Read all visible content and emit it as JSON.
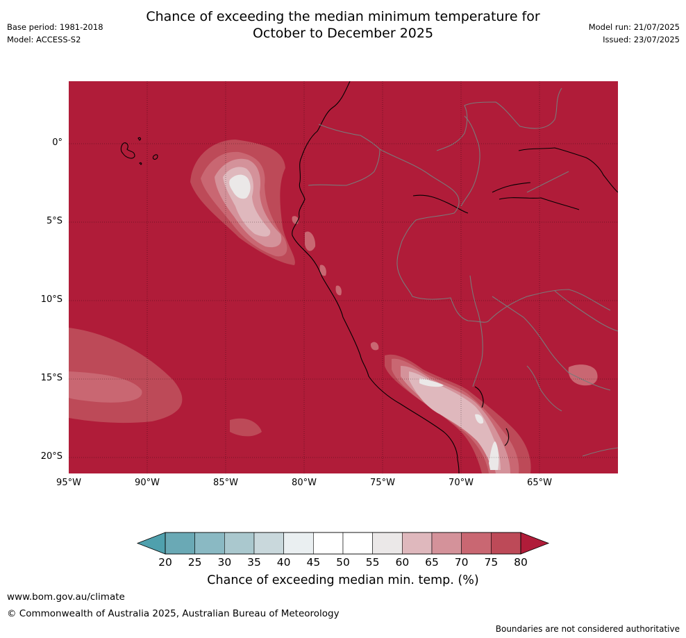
{
  "header": {
    "title_line1": "Chance of exceeding the median minimum temperature for",
    "title_line2": "October to December 2025",
    "base_period": "Base period: 1981-2018",
    "model": "Model: ACCESS-S2",
    "model_run": "Model run: 21/07/2025",
    "issued": "Issued: 23/07/2025"
  },
  "map": {
    "background_color": "#b01c39",
    "lat_labels": [
      "0°",
      "5°S",
      "10°S",
      "15°S",
      "20°S"
    ],
    "lon_labels": [
      "95°W",
      "90°W",
      "85°W",
      "80°W",
      "75°W",
      "70°W",
      "65°W"
    ]
  },
  "colorbar": {
    "ticks": [
      "20",
      "25",
      "30",
      "35",
      "40",
      "45",
      "50",
      "55",
      "60",
      "65",
      "70",
      "75",
      "80"
    ],
    "colors": [
      "#6aa9b5",
      "#8ab9c3",
      "#aac8ce",
      "#c9d8dc",
      "#eaeff1",
      "#ffffff",
      "#ffffff",
      "#ebe8e8",
      "#dfb8bd",
      "#d4929a",
      "#c96772",
      "#bd4a58"
    ],
    "under_color": "#4fa0ad",
    "over_color": "#b01c39",
    "label": "Chance of exceeding median min. temp. (%)"
  },
  "footer": {
    "website": "www.bom.gov.au/climate",
    "copyright": "© Commonwealth of Australia 2025, Australian Bureau of Meteorology",
    "disclaimer": "Boundaries are not considered authoritative"
  }
}
